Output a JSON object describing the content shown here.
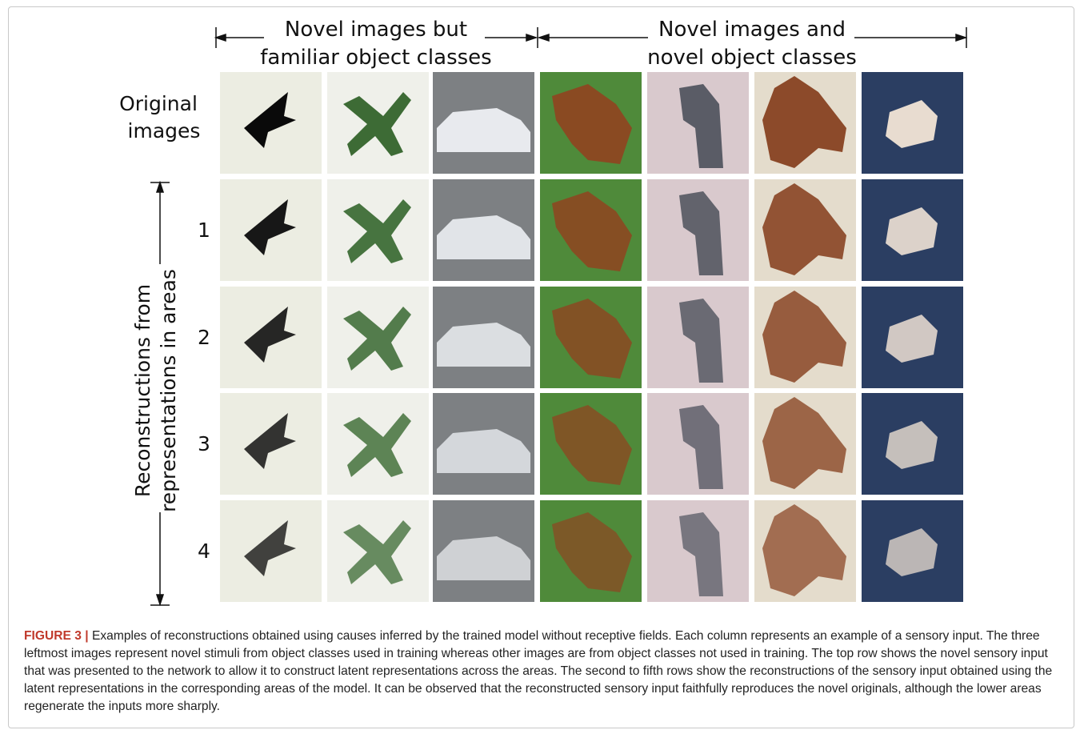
{
  "header": {
    "familiar": [
      "Novel images but",
      "familiar object classes"
    ],
    "novel": [
      "Novel images and",
      "novel object classes"
    ]
  },
  "rows": {
    "original": [
      "Original",
      "images"
    ],
    "areas": [
      "1",
      "2",
      "3",
      "4"
    ],
    "axis_label": [
      "Reconstructions from",
      "representations in areas"
    ]
  },
  "caption": {
    "label": "FIGURE 3 |",
    "text": "Examples of reconstructions obtained using causes inferred by the trained model without receptive fields. Each column represents an example of a sensory input. The three leftmost images represent novel stimuli from object classes used in training whereas other images are from object classes not used in training. The top row shows the novel sensory input that was presented to the network to allow it to construct latent representations across the areas. The second to fifth rows show the reconstructions of the sensory input obtained using the latent representations in the corresponding areas of the model. It can be observed that the reconstructed sensory input faithfully reproduces the novel originals, although the lower areas regenerate the inputs more sharply."
  }
}
